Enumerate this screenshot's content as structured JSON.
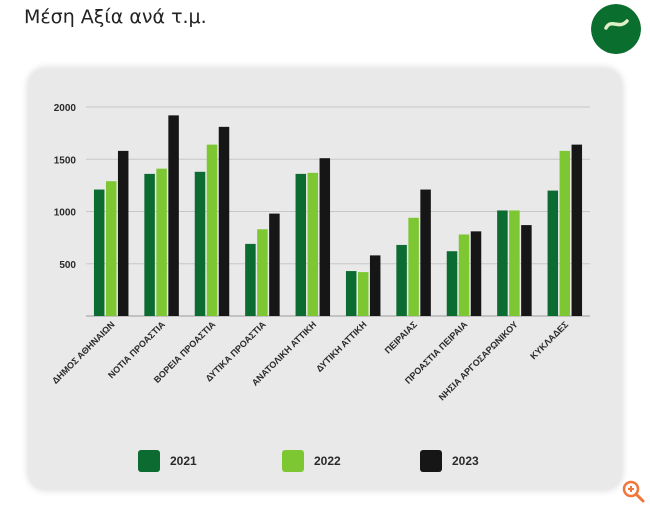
{
  "page": {
    "title": "Μέση Αξία ανά τ.μ."
  },
  "logo": {
    "icon": "leaf-logo-icon",
    "color": "#0a6e2f"
  },
  "zoom": {
    "icon": "zoom-in-icon",
    "color": "#f2753a"
  },
  "colors": {
    "2021": "#0c6b31",
    "2022": "#7dc832",
    "2023": "#161616",
    "card": "#e9e9e9",
    "grid": "#c7c7c7"
  },
  "chart_data": {
    "type": "bar",
    "title": "",
    "xlabel": "",
    "ylabel": "",
    "ylim": [
      0,
      2000
    ],
    "yticks": [
      "500",
      "1000",
      "1500",
      "2000"
    ],
    "grid": true,
    "legend_position": "bottom",
    "categories": [
      "ΔΗΜΟΣ ΑΘΗΝΑΙΩΝ",
      "ΝΟΤΙΑ ΠΡΟΑΣΤΙΑ",
      "ΒΟΡΕΙΑ ΠΡΟΑΣΤΙΑ",
      "ΔΥΤΙΚΑ ΠΡΟΑΣΤΙΑ",
      "ΑΝΑΤΟΛΙΚΗ ΑΤΤΙΚΗ",
      "ΔΥΤΙΚΗ ΑΤΤΙΚΗ",
      "ΠΕΙΡΑΙΑΣ",
      "ΠΡΟΑΣΤΙΑ ΠΕΙΡΑΙΑ",
      "ΝΗΣΙΑ ΑΡΓΟΣΑΡΩΝΙΚΟΥ",
      "ΚΥΚΛΑΔΕΣ"
    ],
    "series": [
      {
        "name": "2021",
        "values": [
          1210,
          1360,
          1380,
          690,
          1360,
          430,
          680,
          620,
          1010,
          1200
        ]
      },
      {
        "name": "2022",
        "values": [
          1290,
          1410,
          1640,
          830,
          1370,
          420,
          940,
          780,
          1010,
          1580
        ]
      },
      {
        "name": "2023",
        "values": [
          1580,
          1920,
          1810,
          980,
          1510,
          580,
          1210,
          810,
          870,
          1640
        ]
      }
    ]
  }
}
